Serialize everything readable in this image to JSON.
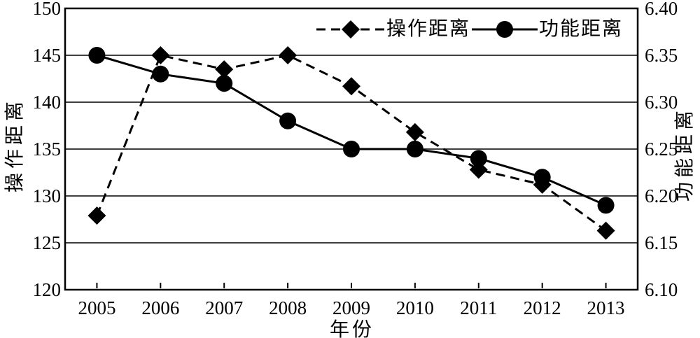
{
  "figure": {
    "background": "#ffffff",
    "foreground": "#000000"
  },
  "chart_data": {
    "type": "line",
    "xlabel": "年份",
    "ylabel_left": "操作距离",
    "ylabel_right": "功能距离",
    "categories": [
      "2005",
      "2006",
      "2007",
      "2008",
      "2009",
      "2010",
      "2011",
      "2012",
      "2013"
    ],
    "left_axis": {
      "label": "操作距离",
      "min": 120,
      "max": 150,
      "step": 5,
      "ticks": [
        "150",
        "145",
        "140",
        "135",
        "130",
        "125",
        "120"
      ]
    },
    "right_axis": {
      "label": "功能距离",
      "min": 6.1,
      "max": 6.4,
      "step": 0.05,
      "ticks": [
        "6.40",
        "6.35",
        "6.30",
        "6.25",
        "6.20",
        "6.15",
        "6.10"
      ]
    },
    "series": [
      {
        "name": "操作距离",
        "axis": "left",
        "line_style": "dashed",
        "marker": "diamond",
        "color": "#000000",
        "values": [
          127.9,
          145,
          143.5,
          145,
          141.7,
          136.8,
          132.8,
          131.2,
          126.3
        ]
      },
      {
        "name": "功能距离",
        "axis": "right",
        "line_style": "solid",
        "marker": "circle",
        "color": "#000000",
        "values": [
          6.35,
          6.33,
          6.32,
          6.28,
          6.25,
          6.25,
          6.24,
          6.22,
          6.19
        ]
      }
    ],
    "grid": "horizontal",
    "legend_position": "top-inside"
  }
}
